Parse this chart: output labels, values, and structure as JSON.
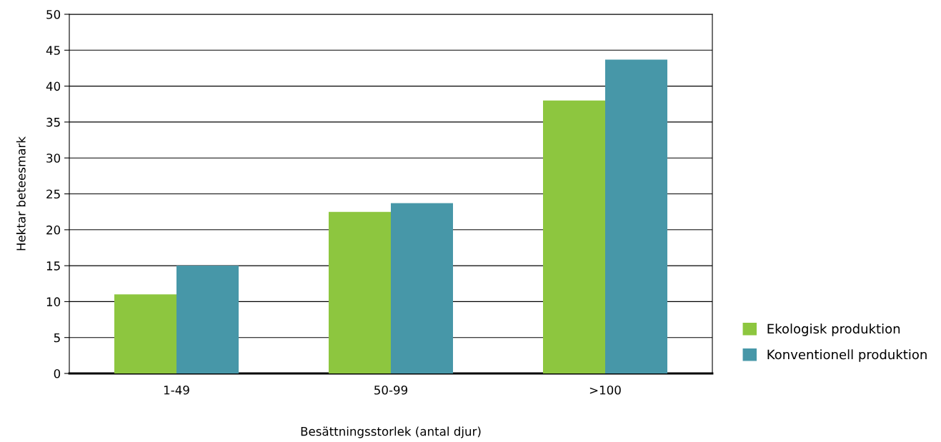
{
  "chart_data": {
    "type": "bar",
    "xlabel": "Besättningsstorlek (antal djur)",
    "ylabel": "Hektar beteesmark",
    "categories": [
      "1-49",
      "50-99",
      ">100"
    ],
    "series": [
      {
        "name": "Ekologisk produktion",
        "color": "#8dc63f",
        "values": [
          11.0,
          22.5,
          38.0
        ]
      },
      {
        "name": "Konventionell produktion",
        "color": "#4797a8",
        "values": [
          15.0,
          23.7,
          43.7
        ]
      }
    ],
    "ylim": [
      0,
      50
    ],
    "yticks": [
      0,
      5,
      10,
      15,
      20,
      25,
      30,
      35,
      40,
      45,
      50
    ],
    "grid": "y",
    "legend": "bottom right"
  }
}
